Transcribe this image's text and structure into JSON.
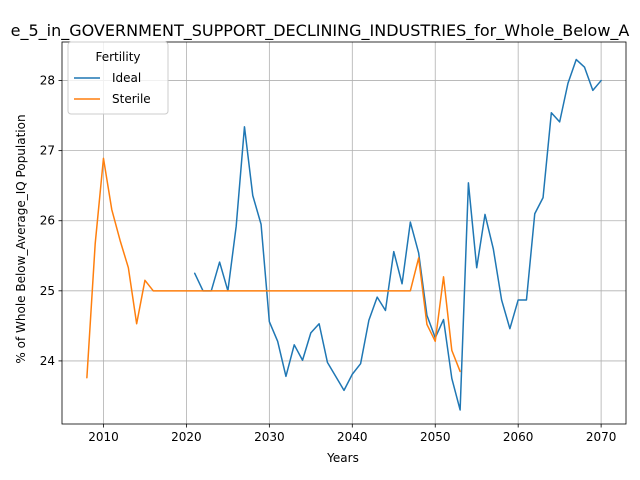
{
  "chart_data": {
    "type": "line",
    "title": "e_5_in_GOVERNMENT_SUPPORT_DECLINING_INDUSTRIES_for_Whole_Below_A",
    "xlabel": "Years",
    "ylabel": "% of Whole Below_Average_IQ Population",
    "xlim": [
      2005,
      2073
    ],
    "ylim": [
      23.1,
      28.55
    ],
    "xticks": [
      2010,
      2020,
      2030,
      2040,
      2050,
      2060,
      2070
    ],
    "yticks": [
      24,
      25,
      26,
      27,
      28
    ],
    "grid": true,
    "legend": {
      "title": "Fertility",
      "placement": "top-left"
    },
    "series": [
      {
        "name": "Ideal",
        "color": "#1f77b4",
        "x": [
          2021,
          2022,
          2023,
          2024,
          2025,
          2026,
          2027,
          2028,
          2029,
          2030,
          2031,
          2032,
          2033,
          2034,
          2035,
          2036,
          2037,
          2038,
          2039,
          2040,
          2041,
          2042,
          2043,
          2044,
          2045,
          2046,
          2047,
          2048,
          2049,
          2050,
          2051,
          2052,
          2053,
          2054,
          2055,
          2056,
          2057,
          2058,
          2059,
          2060,
          2061,
          2062,
          2063,
          2064,
          2065,
          2066,
          2067,
          2068,
          2069,
          2070
        ],
        "y": [
          25.25,
          25.0,
          25.0,
          25.41,
          25.0,
          25.92,
          27.34,
          26.36,
          25.95,
          24.56,
          24.28,
          23.78,
          24.23,
          24.01,
          24.4,
          24.53,
          23.98,
          23.78,
          23.58,
          23.81,
          23.96,
          24.58,
          24.91,
          24.72,
          25.56,
          25.1,
          25.98,
          25.54,
          24.65,
          24.33,
          24.59,
          23.75,
          23.3,
          26.54,
          25.33,
          26.09,
          25.6,
          24.87,
          24.46,
          24.87,
          24.87,
          26.1,
          26.33,
          27.54,
          27.41,
          27.96,
          28.3,
          28.19,
          27.86,
          28.0
        ]
      },
      {
        "name": "Sterile",
        "color": "#ff7f0e",
        "x": [
          2008,
          2009,
          2010,
          2011,
          2012,
          2013,
          2014,
          2015,
          2016,
          2017,
          2018,
          2019,
          2020,
          2021,
          2022,
          2023,
          2024,
          2025,
          2026,
          2027,
          2028,
          2029,
          2030,
          2031,
          2032,
          2033,
          2034,
          2035,
          2036,
          2037,
          2038,
          2039,
          2040,
          2041,
          2042,
          2043,
          2044,
          2045,
          2046,
          2047,
          2048,
          2049,
          2050,
          2051,
          2052,
          2053
        ],
        "y": [
          23.76,
          25.67,
          26.89,
          26.16,
          25.72,
          25.33,
          24.53,
          25.15,
          25.0,
          25.0,
          25.0,
          25.0,
          25.0,
          25.0,
          25.0,
          25.0,
          25.0,
          25.0,
          25.0,
          25.0,
          25.0,
          25.0,
          25.0,
          25.0,
          25.0,
          25.0,
          25.0,
          25.0,
          25.0,
          25.0,
          25.0,
          25.0,
          25.0,
          25.0,
          25.0,
          25.0,
          25.0,
          25.0,
          25.0,
          25.0,
          25.47,
          24.52,
          24.28,
          25.2,
          24.15,
          23.85
        ]
      }
    ]
  }
}
